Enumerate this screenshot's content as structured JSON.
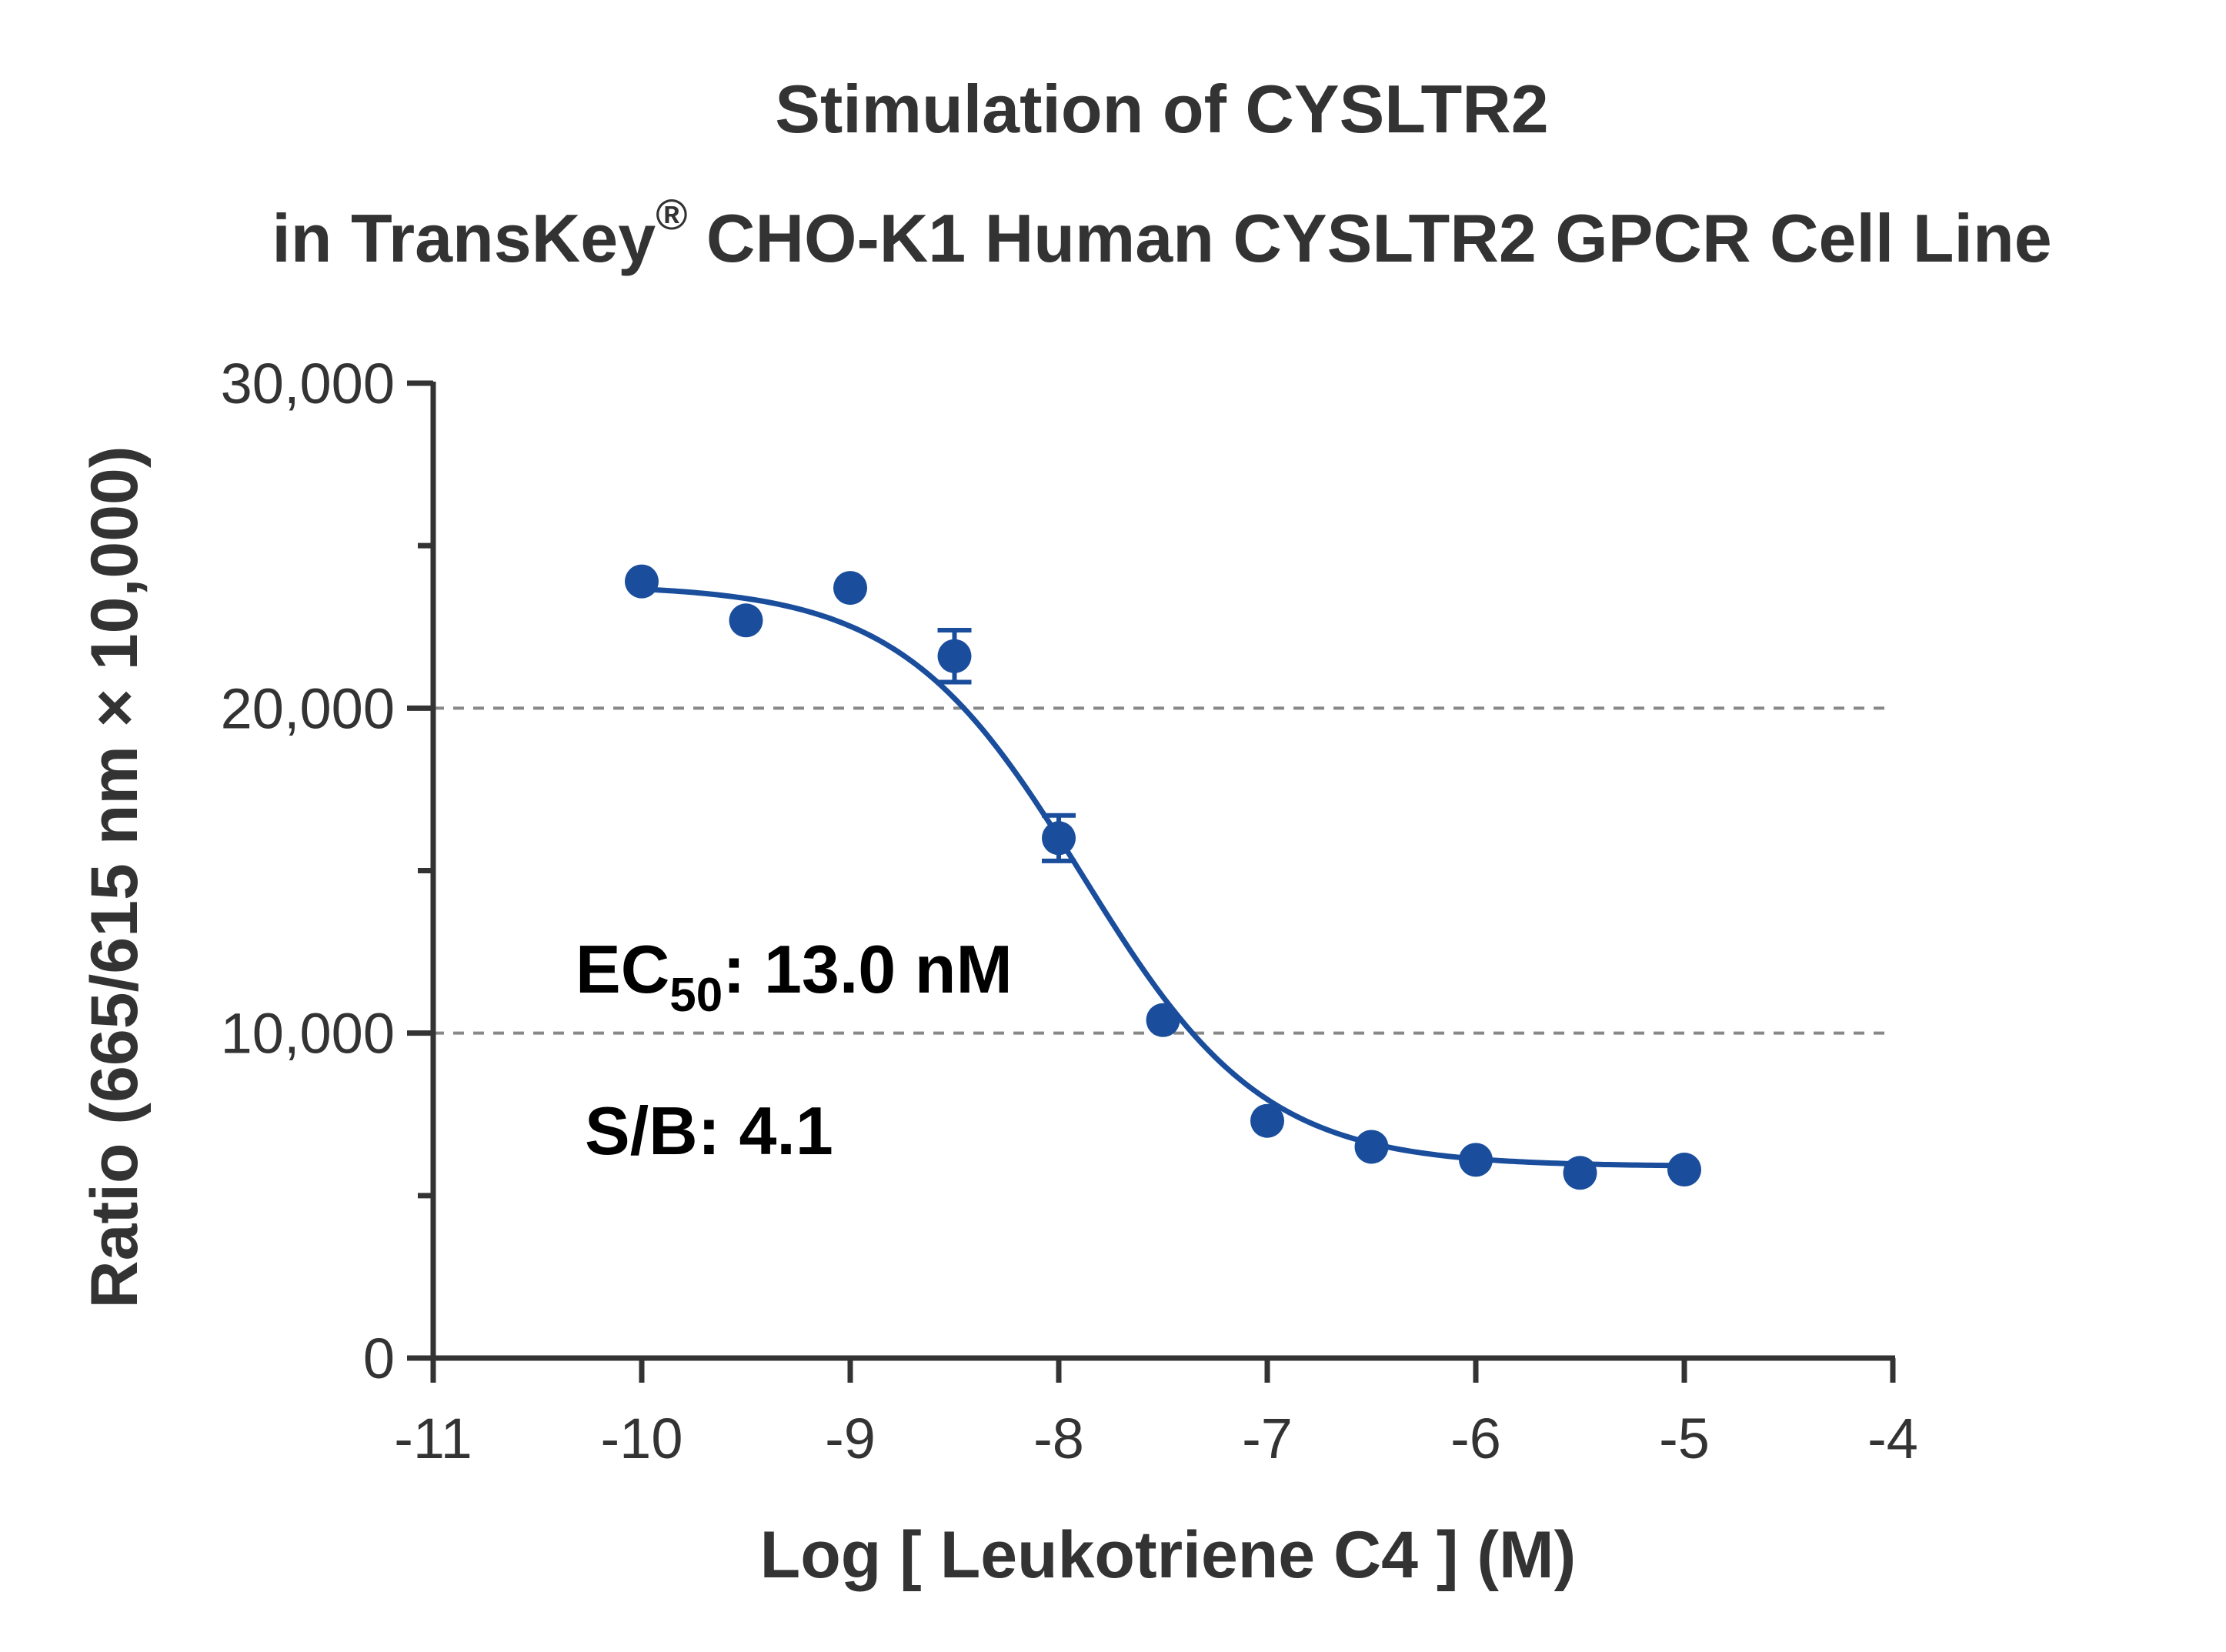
{
  "chart_data": {
    "type": "scatter",
    "title_line1": "Stimulation of  CYSLTR2",
    "title_line2_pre": "in TransKey",
    "title_line2_sup": "®",
    "title_line2_post": " CHO-K1 Human CYSLTR2 GPCR Cell Line",
    "xlabel": "Log [ Leukotriene C4 ]  (M)",
    "ylabel": "Ratio (665/615 nm × 10,000)",
    "xlim": [
      -11,
      -4
    ],
    "ylim": [
      0,
      30000
    ],
    "x_ticks": [
      -11,
      -10,
      -9,
      -8,
      -7,
      -6,
      -5,
      -4
    ],
    "x_tick_labels": [
      "-11",
      "-10",
      "-9",
      "-8",
      "-7",
      "-6",
      "-5",
      "-4"
    ],
    "y_ticks_major": [
      0,
      10000,
      20000,
      30000
    ],
    "y_tick_labels": [
      "0",
      "10,000",
      "20,000",
      "30,000"
    ],
    "y_ticks_minor": [
      5000,
      15000,
      25000
    ],
    "reference_lines_y": [
      10000,
      20000
    ],
    "series": [
      {
        "x": [
          -10,
          -9.5,
          -9,
          -8.5,
          -8,
          -7.5,
          -7,
          -6.5,
          -6,
          -5.5,
          -5
        ],
        "y": [
          23900,
          22700,
          23700,
          21600,
          16000,
          10400,
          7300,
          6500,
          6100,
          5700,
          5800
        ],
        "error": [
          0,
          0,
          0,
          800,
          700,
          0,
          0,
          0,
          0,
          0,
          0
        ]
      }
    ],
    "fit": {
      "type": "four-parameter-logistic",
      "top": 23800,
      "bottom": 5900,
      "log_ec50": -7.886,
      "hill_slope": -1
    },
    "annotations": {
      "ec50_prefix": "EC",
      "ec50_sub": "50",
      "ec50_value": ": 13.0 nM",
      "sb_text": "S/B: 4.1"
    },
    "colors": {
      "series": "#1a4e9c",
      "axis": "#333333",
      "reference_line": "#888888",
      "text": "#333333"
    }
  }
}
